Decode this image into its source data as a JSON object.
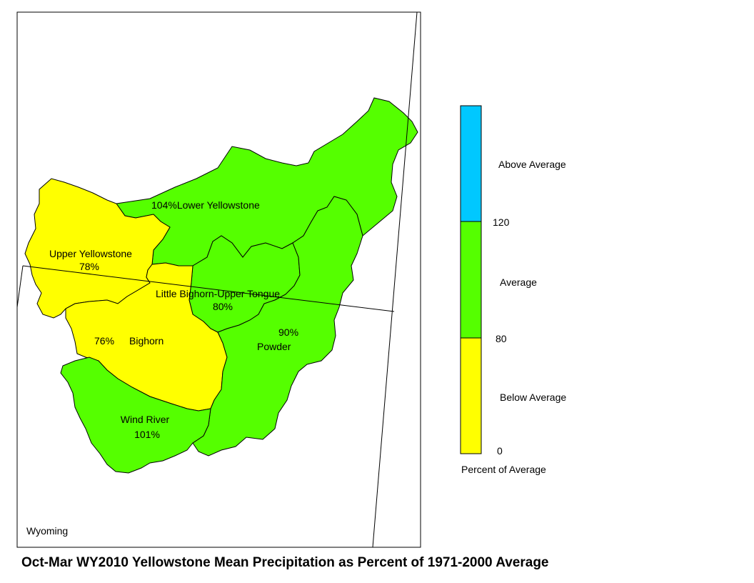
{
  "title": "Oct-Mar WY2010 Yellowstone Mean Precipitation as Percent of 1971-2000 Average",
  "state_label": "Wyoming",
  "colors": {
    "below": "#ffff00",
    "average": "#55ff00",
    "above": "#00c8ff",
    "outline": "#000000"
  },
  "basins": [
    {
      "name": "Lower Yellowstone",
      "percent": "104%",
      "category": "average"
    },
    {
      "name": "Upper Yellowstone",
      "percent": "78%",
      "category": "below"
    },
    {
      "name": "Little Bighorn-Upper Tongue",
      "percent": "80%",
      "category": "average"
    },
    {
      "name": "Bighorn",
      "percent": "76%",
      "category": "below"
    },
    {
      "name": "Powder",
      "percent": "90%",
      "category": "average"
    },
    {
      "name": "Wind River",
      "percent": "101%",
      "category": "average"
    }
  ],
  "legend": {
    "title": "Percent of Average",
    "classes": [
      {
        "label": "Above Average",
        "color": "#00c8ff"
      },
      {
        "label": "Average",
        "color": "#55ff00"
      },
      {
        "label": "Below Average",
        "color": "#ffff00"
      }
    ],
    "ticks": [
      "120",
      "80",
      "0"
    ]
  }
}
